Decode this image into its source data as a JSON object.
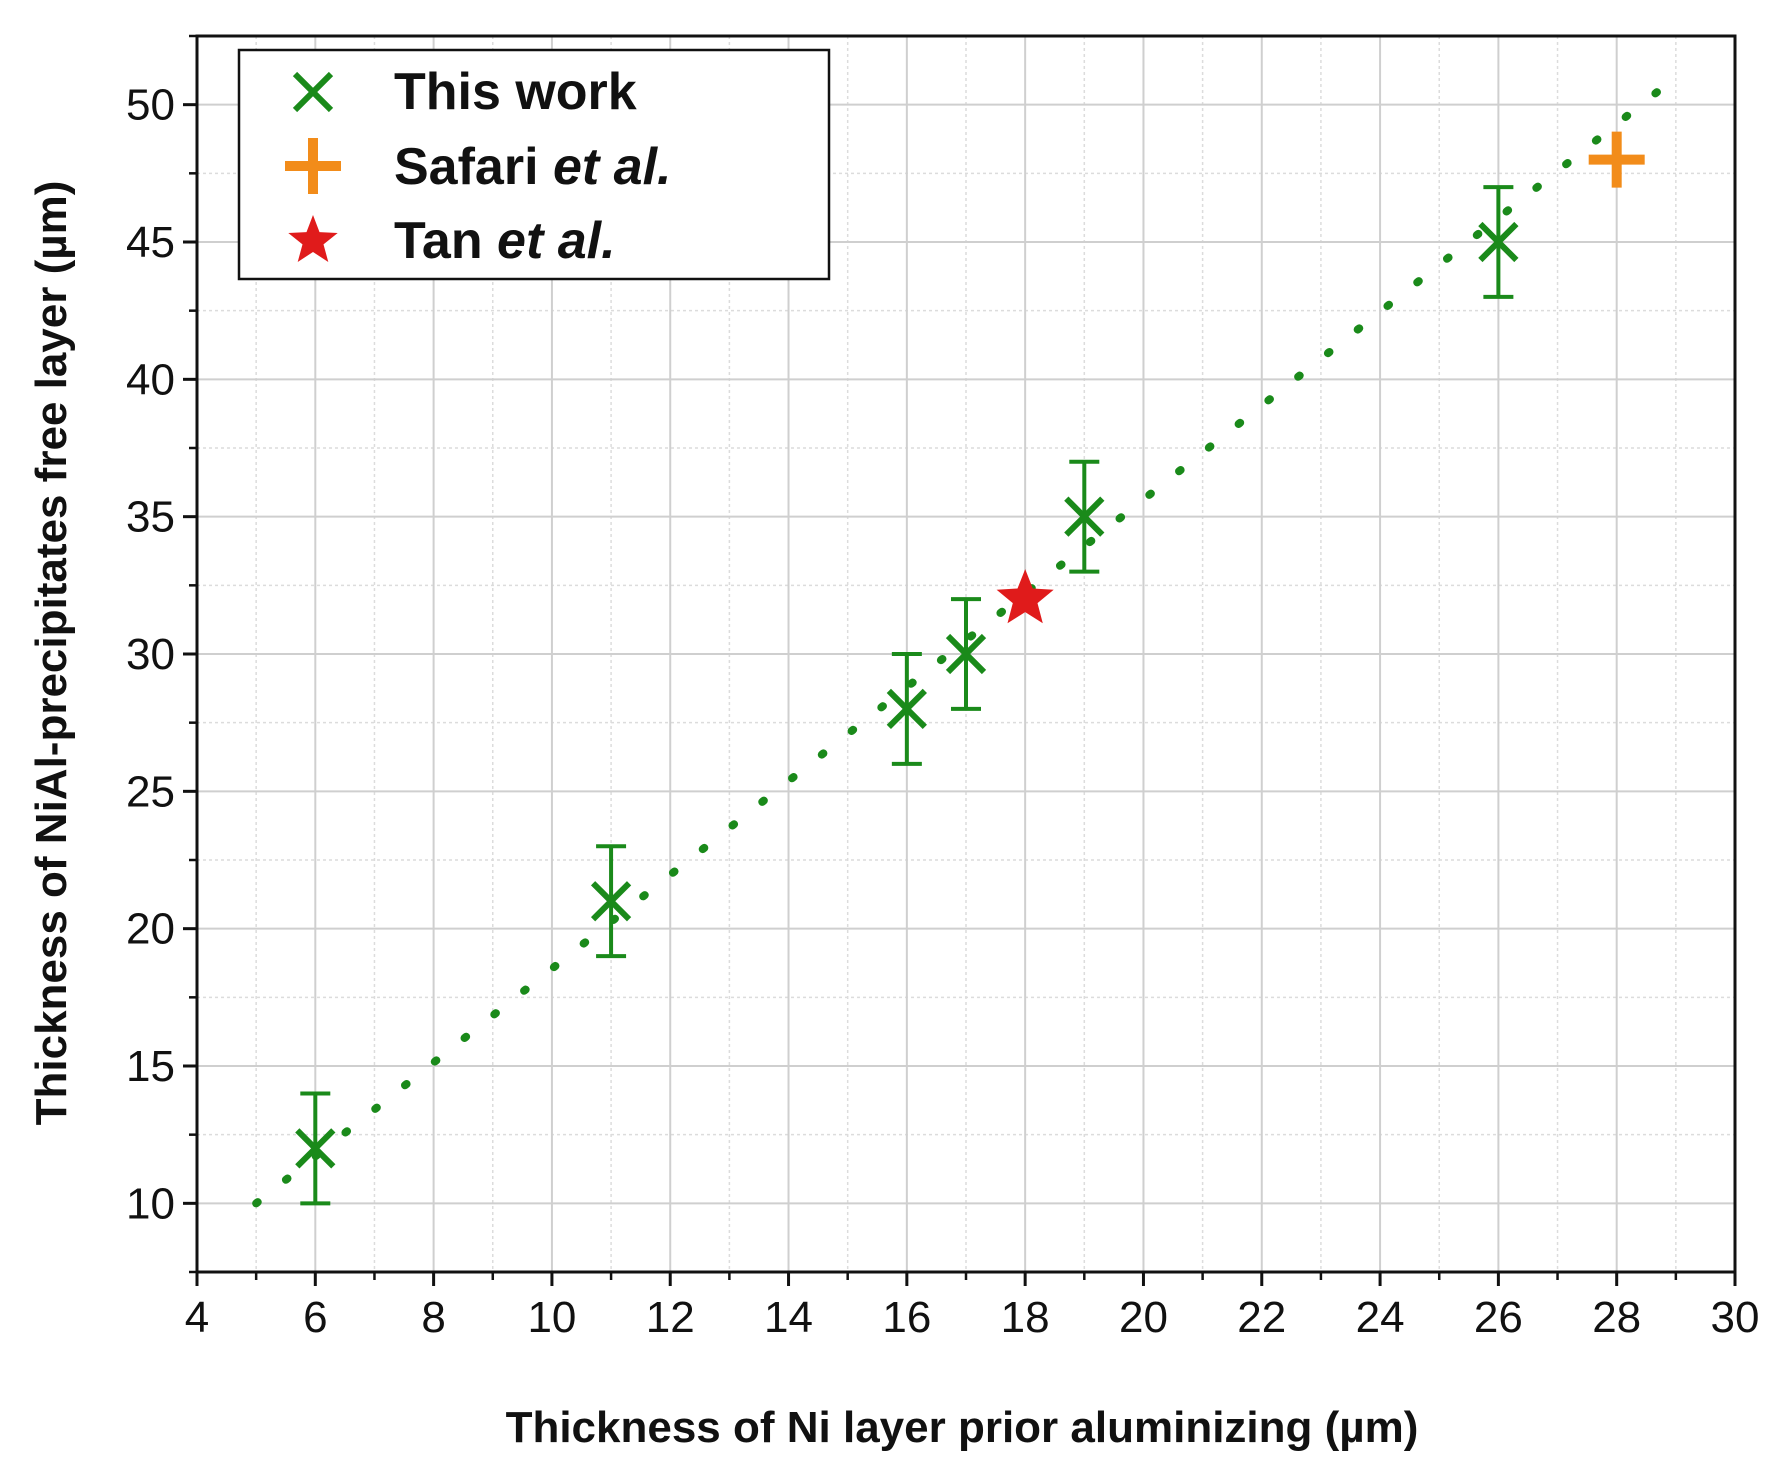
{
  "chart_data": {
    "type": "scatter",
    "xlabel": "Thickness of Ni layer prior aluminizing (µm)",
    "ylabel": "Thickness of NiAl-precipitates free layer (µm)",
    "xlim": [
      4,
      30
    ],
    "ylim": [
      7.5,
      52.5
    ],
    "xticks": [
      "4",
      "6",
      "8",
      "10",
      "12",
      "14",
      "16",
      "18",
      "20",
      "22",
      "24",
      "26",
      "28",
      "30"
    ],
    "yticks": [
      "10",
      "15",
      "20",
      "25",
      "30",
      "35",
      "40",
      "45",
      "50"
    ],
    "grid": true,
    "legend_position": "top-left",
    "series": [
      {
        "name": "This work",
        "marker": "x",
        "color": "#1a8a1a",
        "points": [
          {
            "x": 6,
            "y": 12,
            "err": 2
          },
          {
            "x": 11,
            "y": 21,
            "err": 2
          },
          {
            "x": 16,
            "y": 28,
            "err": 2
          },
          {
            "x": 17,
            "y": 30,
            "err": 2
          },
          {
            "x": 19,
            "y": 35,
            "err": 2
          },
          {
            "x": 26,
            "y": 45,
            "err": 2
          }
        ]
      },
      {
        "name_parts": [
          "Safari ",
          "et al."
        ],
        "marker": "plus",
        "color": "#f28c1a",
        "points": [
          {
            "x": 28,
            "y": 48
          }
        ]
      },
      {
        "name_parts": [
          "Tan ",
          "et al."
        ],
        "marker": "star",
        "color": "#e01b1b",
        "points": [
          {
            "x": 18,
            "y": 32
          }
        ]
      }
    ],
    "trendline": {
      "style": "dotted",
      "color": "#1a8a1a",
      "x": [
        5,
        29
      ],
      "y": [
        10,
        51
      ]
    }
  }
}
